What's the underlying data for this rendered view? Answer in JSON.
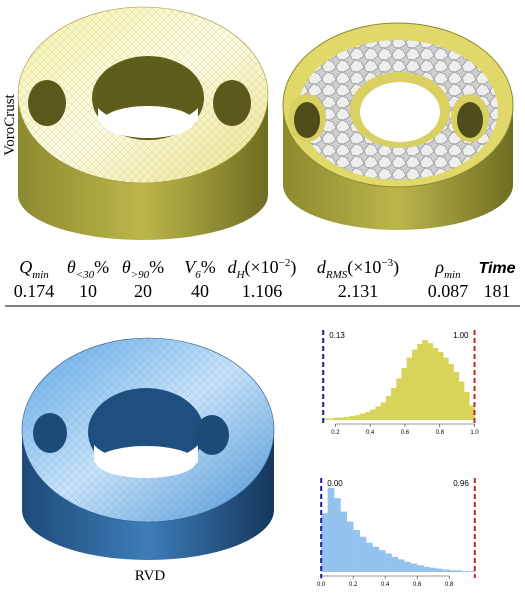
{
  "figure": {
    "top_label": "VoroCrust",
    "bottom_label": "RVD",
    "table": {
      "headers": [
        [
          {
            "i": "Q"
          },
          {
            "sub": "min"
          }
        ],
        [
          {
            "i": "θ"
          },
          {
            "sub": "<30"
          },
          {
            "r": "%"
          }
        ],
        [
          {
            "i": "θ"
          },
          {
            "sub": ">90"
          },
          {
            "r": "%"
          }
        ],
        [
          {
            "i": "V"
          },
          {
            "sub": "6"
          },
          {
            "r": "%"
          }
        ],
        [
          {
            "i": "d"
          },
          {
            "sub": "H"
          },
          {
            "r": "(×10"
          },
          {
            "sup": "−2"
          },
          {
            "r": ")"
          }
        ],
        [
          {
            "i": "d"
          },
          {
            "sub": "RMS"
          },
          {
            "r": "(×10"
          },
          {
            "sup": "−3"
          },
          {
            "r": ")"
          }
        ],
        [
          {
            "i": "ρ"
          },
          {
            "sub": "min"
          }
        ],
        [
          {
            "b": "Time"
          }
        ]
      ],
      "values": [
        0.174,
        10,
        20,
        40,
        1.106,
        2.131,
        0.087,
        181
      ]
    },
    "histograms": [
      {
        "type": "histogram",
        "color": "#d8d45a",
        "bins": [
          0.13,
          0.16,
          0.19,
          0.22,
          0.25,
          0.28,
          0.31,
          0.34,
          0.37,
          0.4,
          0.43,
          0.46,
          0.49,
          0.52,
          0.55,
          0.58,
          0.61,
          0.64,
          0.67,
          0.7,
          0.73,
          0.76,
          0.79,
          0.82,
          0.85,
          0.88,
          0.91,
          0.94,
          0.97,
          1.0
        ],
        "counts": [
          2,
          2,
          3,
          3,
          4,
          5,
          6,
          8,
          10,
          13,
          17,
          22,
          30,
          40,
          52,
          65,
          78,
          88,
          95,
          100,
          96,
          90,
          85,
          78,
          70,
          60,
          48,
          35,
          18
        ],
        "xlim": [
          0.1,
          1.02
        ],
        "ylim": [
          0,
          100
        ],
        "xticks": [
          0.2,
          0.4,
          0.6,
          0.8,
          {
            "value": 1,
            "label": "1.0"
          }
        ],
        "markers": [
          {
            "value": 0.13,
            "label": "0.13",
            "color": "#1c1ca8"
          },
          {
            "value": 1,
            "label": "1.00",
            "color": "#d42020"
          }
        ]
      },
      {
        "type": "histogram",
        "color": "#93c3ee",
        "bins": [
          0,
          0.04,
          0.08,
          0.12,
          0.16,
          0.2,
          0.24,
          0.28,
          0.32,
          0.36,
          0.4,
          0.44,
          0.48,
          0.52,
          0.56,
          0.6,
          0.64,
          0.68,
          0.72,
          0.76,
          0.8,
          0.84,
          0.88,
          0.92,
          0.96
        ],
        "counts": [
          70,
          100,
          88,
          72,
          60,
          50,
          42,
          35,
          30,
          26,
          22,
          18,
          15,
          12,
          10,
          8,
          6,
          5,
          4,
          3,
          2,
          2,
          1,
          1
        ],
        "xlim": [
          -0.02,
          0.98
        ],
        "ylim": [
          0,
          100
        ],
        "xticks": [
          {
            "value": 0,
            "label": "0.0"
          },
          0.2,
          0.4,
          0.6,
          0.8
        ],
        "markers": [
          {
            "value": 0,
            "label": "0.00",
            "color": "#1c1ca8"
          },
          {
            "value": 0.96,
            "label": "0.96",
            "color": "#d42020"
          }
        ]
      }
    ]
  }
}
